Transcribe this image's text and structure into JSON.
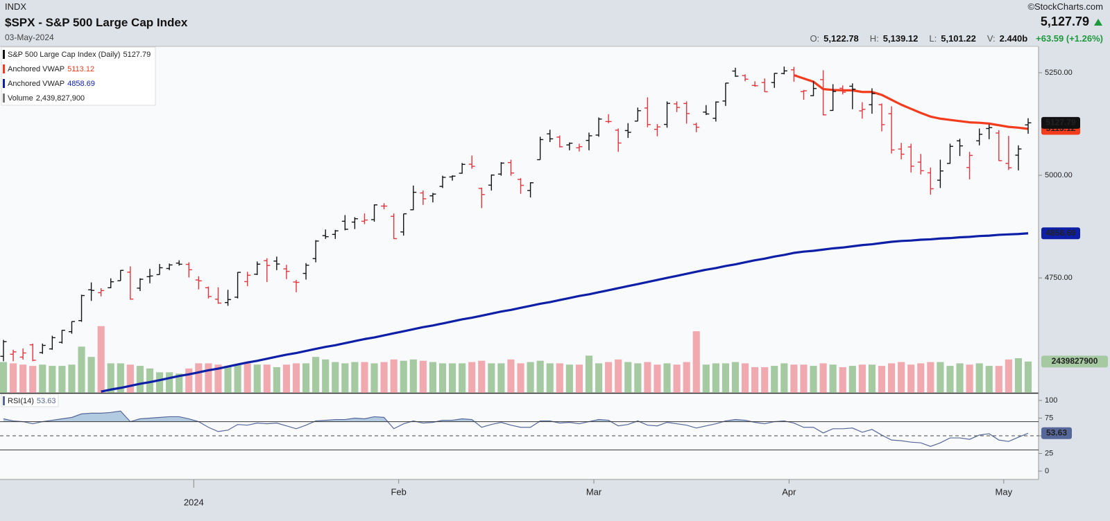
{
  "chart_data": {
    "type": "ohlc",
    "exchange": "INDX",
    "title": "$SPX - S&P 500 Large Cap Index",
    "date": "03-May-2024",
    "credit": "©StockCharts.com",
    "quote": [
      {
        "name": "O:",
        "label": "5,122.78"
      },
      {
        "name": "H:",
        "label": "5,139.12"
      },
      {
        "name": "L:",
        "label": "5,101.22"
      },
      {
        "name": "V:",
        "label": "2.440b"
      }
    ],
    "change": {
      "value": 63.59,
      "label": "+63.59 (+1.26%)"
    },
    "categories": [
      null,
      null,
      null,
      null,
      null,
      null,
      null,
      null,
      null,
      null,
      null,
      null,
      null,
      null,
      null,
      null,
      null,
      null,
      null,
      null,
      "2024",
      null,
      null,
      null,
      null,
      null,
      null,
      null,
      null,
      null,
      null,
      null,
      null,
      null,
      null,
      null,
      null,
      null,
      null,
      null,
      null,
      "Feb",
      null,
      null,
      null,
      null,
      null,
      null,
      null,
      null,
      null,
      null,
      null,
      null,
      null,
      null,
      null,
      null,
      null,
      null,
      null,
      "Mar",
      null,
      null,
      null,
      null,
      null,
      null,
      null,
      null,
      null,
      null,
      null,
      null,
      null,
      null,
      null,
      null,
      null,
      null,
      null,
      "Apr",
      null,
      null,
      null,
      null,
      null,
      null,
      null,
      null,
      null,
      null,
      null,
      null,
      null,
      null,
      null,
      null,
      null,
      null,
      null,
      null,
      null,
      "May",
      null,
      null
    ],
    "price": {
      "name": "S&P 500 Large Cap Index (Daily)",
      "last_label": "5,127.79",
      "up_color": "#111111",
      "down_color": "#e5333b",
      "open": [
        4559,
        4564,
        4557,
        4587,
        4568,
        4577,
        4593,
        4619,
        4646,
        4721,
        4714,
        4726,
        4743,
        4764,
        4725,
        4753,
        4758,
        4773,
        4786,
        4783,
        4745,
        4726,
        4698,
        4690,
        4703,
        4741,
        4759,
        4792,
        4791,
        4772,
        4740,
        4761,
        4797,
        4853,
        4856,
        4888,
        4886,
        4888,
        4892,
        4925,
        4900,
        4862,
        4916,
        4957,
        4950,
        4973,
        4996,
        5005,
        5027,
        4968,
        4976,
        5003,
        5031,
        4990,
        4963,
        5038,
        5101,
        5093,
        5074,
        5067,
        5085,
        5098,
        5131,
        5110,
        5109,
        5132,
        5164,
        5112,
        5124,
        5174,
        5175,
        5124,
        5154,
        5139,
        5181,
        5254,
        5243,
        5219,
        5226,
        5226,
        5248,
        5257,
        5204,
        5194,
        5233,
        5158,
        5212,
        5217,
        5157,
        5172,
        5172,
        5150,
        5064,
        5069,
        5032,
        5006,
        4988,
        5029,
        5084,
        5019,
        5084,
        5114,
        5103,
        5029,
        5049,
        5122.78
      ],
      "high": [
        4599,
        4575,
        4578,
        4590,
        4590,
        4609,
        4623,
        4644,
        4709,
        4739,
        4725,
        4749,
        4769,
        4778,
        4749,
        4772,
        4784,
        4785,
        4793,
        4788,
        4754,
        4729,
        4727,
        4721,
        4764,
        4765,
        4790,
        4798,
        4802,
        4782,
        4745,
        4786,
        4842,
        4868,
        4867,
        4903,
        4898,
        4907,
        4929,
        4932,
        4907,
        4906,
        4975,
        4963,
        4957,
        4999,
        5000,
        5030,
        5048,
        4970,
        5002,
        5032,
        5038,
        4993,
        4983,
        5094,
        5111,
        5097,
        5080,
        5077,
        5104,
        5141,
        5149,
        5114,
        5127,
        5165,
        5190,
        5125,
        5180,
        5180,
        5180,
        5128,
        5171,
        5180,
        5225,
        5262,
        5246,
        5229,
        5236,
        5249,
        5265,
        5264,
        5208,
        5229,
        5256,
        5222,
        5219,
        5224,
        5178,
        5212,
        5175,
        5168,
        5079,
        5077,
        5052,
        5019,
        5038,
        5077,
        5089,
        5057,
        5114,
        5124,
        5110,
        5096,
        5073,
        5139.12
      ],
      "low": [
        4547,
        4547,
        4551,
        4547,
        4565,
        4575,
        4590,
        4614,
        4643,
        4694,
        4705,
        4725,
        4743,
        4697,
        4718,
        4737,
        4758,
        4769,
        4780,
        4751,
        4722,
        4700,
        4687,
        4682,
        4700,
        4730,
        4757,
        4740,
        4769,
        4747,
        4715,
        4746,
        4788,
        4845,
        4845,
        4866,
        4869,
        4881,
        4887,
        4917,
        4845,
        4853,
        4915,
        4928,
        4934,
        4969,
        4987,
        5004,
        5016,
        4920,
        4963,
        4999,
        4999,
        4955,
        4946,
        5038,
        5081,
        5068,
        5061,
        5058,
        5061,
        5094,
        5127,
        5057,
        5091,
        5132,
        5117,
        5095,
        5116,
        5154,
        5126,
        5105,
        5147,
        5131,
        5169,
        5240,
        5229,
        5216,
        5203,
        5213,
        5246,
        5228,
        5184,
        5193,
        5146,
        5157,
        5197,
        5161,
        5138,
        5150,
        5107,
        5053,
        5039,
        5007,
        5002,
        4953,
        4969,
        5028,
        5047,
        4990,
        5073,
        5088,
        5035,
        5013,
        5012,
        5101.22
      ],
      "close": [
        4594.63,
        4569.78,
        4567.18,
        4549.34,
        4585.59,
        4604.37,
        4622.44,
        4643.7,
        4707.09,
        4719.55,
        4719.19,
        4740.56,
        4768.37,
        4698.35,
        4746.75,
        4754.63,
        4774.75,
        4781.58,
        4783.35,
        4769.83,
        4742.83,
        4704.81,
        4688.68,
        4697.24,
        4763.54,
        4756.5,
        4783.45,
        4780.24,
        4783.83,
        4765.98,
        4739.21,
        4780.94,
        4839.81,
        4850.43,
        4864.6,
        4868.55,
        4894.16,
        4890.97,
        4927.93,
        4924.97,
        4845.65,
        4906.19,
        4958.61,
        4942.81,
        4954.23,
        4995.06,
        4997.91,
        5026.61,
        5021.84,
        4953.17,
        5000.62,
        5029.73,
        5005.57,
        4975.51,
        4981.8,
        5087.03,
        5088.8,
        5069.53,
        5078.18,
        5069.76,
        5096.27,
        5137.08,
        5130.95,
        5078.65,
        5104.76,
        5157.36,
        5123.69,
        5117.94,
        5175.27,
        5165.31,
        5150.48,
        5117.09,
        5149.42,
        5178.51,
        5224.62,
        5241.53,
        5234.18,
        5218.19,
        5203.58,
        5248.49,
        5254.35,
        5243.77,
        5205.81,
        5211.49,
        5147.21,
        5204.34,
        5202.39,
        5209.91,
        5160.64,
        5199.06,
        5123.41,
        5061.82,
        5051.41,
        5022.21,
        5011.12,
        4967.23,
        5010.6,
        5070.55,
        5071.63,
        5048.42,
        5099.96,
        5116.17,
        5035.69,
        5018.39,
        5064.2,
        5127.79
      ]
    },
    "overlays": [
      {
        "name": "Anchored VWAP",
        "color": "#f23c1c",
        "values": [
          null,
          null,
          null,
          null,
          null,
          null,
          null,
          null,
          null,
          null,
          null,
          null,
          null,
          null,
          null,
          null,
          null,
          null,
          null,
          null,
          null,
          null,
          null,
          null,
          null,
          null,
          null,
          null,
          null,
          null,
          null,
          null,
          null,
          null,
          null,
          null,
          null,
          null,
          null,
          null,
          null,
          null,
          null,
          null,
          null,
          null,
          null,
          null,
          null,
          null,
          null,
          null,
          null,
          null,
          null,
          null,
          null,
          null,
          null,
          null,
          null,
          null,
          null,
          null,
          null,
          null,
          null,
          null,
          null,
          null,
          null,
          null,
          null,
          null,
          null,
          null,
          null,
          null,
          null,
          null,
          null,
          5244,
          5236,
          5228,
          5210,
          5208,
          5207,
          5207,
          5203,
          5203,
          5196,
          5184,
          5172,
          5162,
          5152,
          5143,
          5138,
          5135,
          5132,
          5129,
          5128,
          5126,
          5122,
          5118,
          5116,
          5113.12
        ]
      },
      {
        "name": "Anchored VWAP",
        "color": "#0d1fa6",
        "values": [
          null,
          null,
          null,
          null,
          null,
          null,
          null,
          null,
          null,
          null,
          4473,
          4478,
          4482,
          4487,
          4492,
          4496,
          4501,
          4506,
          4511,
          4515,
          4520,
          4525,
          4529,
          4534,
          4539,
          4544,
          4548,
          4553,
          4558,
          4563,
          4567,
          4572,
          4577,
          4582,
          4586,
          4591,
          4596,
          4601,
          4605,
          4610,
          4615,
          4620,
          4625,
          4630,
          4634,
          4639,
          4644,
          4649,
          4653,
          4658,
          4663,
          4668,
          4672,
          4677,
          4682,
          4687,
          4691,
          4696,
          4701,
          4706,
          4710,
          4715,
          4720,
          4725,
          4730,
          4735,
          4740,
          4745,
          4750,
          4755,
          4760,
          4765,
          4770,
          4774,
          4779,
          4783,
          4788,
          4793,
          4797,
          4802,
          4806,
          4811,
          4814,
          4816,
          4819,
          4822,
          4824,
          4827,
          4830,
          4832,
          4835,
          4838,
          4840,
          4841,
          4843,
          4844,
          4846,
          4847,
          4849,
          4850,
          4852,
          4853,
          4855,
          4856,
          4857,
          4858.69
        ]
      }
    ],
    "volume": {
      "name": "Volume",
      "last_label": "2,439,827,900",
      "up_color": "#a5c9a1",
      "down_color": "#f0a9af",
      "ylim": [
        0,
        27000000000
      ],
      "values": [
        2400000000.0,
        2300000000.0,
        2200000000.0,
        2100000000.0,
        2200000000.0,
        2100000000.0,
        2100000000.0,
        2200000000.0,
        3600000000.0,
        2800000000.0,
        5200000000.0,
        2300000000.0,
        2300000000.0,
        2200000000.0,
        2100000000.0,
        1900000000.0,
        1600000000.0,
        1600000000.0,
        1500000000.0,
        1900000000.0,
        2300000000.0,
        2300000000.0,
        2200000000.0,
        2100000000.0,
        2200000000.0,
        2300000000.0,
        2200000000.0,
        2200000000.0,
        2000000000.0,
        2200000000.0,
        2300000000.0,
        2300000000.0,
        2800000000.0,
        2600000000.0,
        2400000000.0,
        2300000000.0,
        2400000000.0,
        2400000000.0,
        2300000000.0,
        2400000000.0,
        2600000000.0,
        2500000000.0,
        2600000000.0,
        2500000000.0,
        2400000000.0,
        2300000000.0,
        2300000000.0,
        2300000000.0,
        2400000000.0,
        2500000000.0,
        2300000000.0,
        2300000000.0,
        2600000000.0,
        2300000000.0,
        2400000000.0,
        2500000000.0,
        2300000000.0,
        2300000000.0,
        2200000000.0,
        2200000000.0,
        2900000000.0,
        2300000000.0,
        2400000000.0,
        2600000000.0,
        2400000000.0,
        2300000000.0,
        2400000000.0,
        2200000000.0,
        2300000000.0,
        2200000000.0,
        2400000000.0,
        4800000000.0,
        2200000000.0,
        2300000000.0,
        2300000000.0,
        2400000000.0,
        2300000000.0,
        2000000000.0,
        2000000000.0,
        2100000000.0,
        2300000000.0,
        2200000000.0,
        2200000000.0,
        2100000000.0,
        2300000000.0,
        2200000000.0,
        2000000000.0,
        2100000000.0,
        2200000000.0,
        2200000000.0,
        2100000000.0,
        2300000000.0,
        2400000000.0,
        2200000000.0,
        2300000000.0,
        2400000000.0,
        2400000000.0,
        2100000000.0,
        2300000000.0,
        2200000000.0,
        2300000000.0,
        2100000000.0,
        2100000000.0,
        2600000000.0,
        2700000000.0,
        2439827900
      ]
    },
    "ylim": [
      4470,
      5314
    ],
    "yticks": [
      {
        "value": 4750,
        "label": "4750.00"
      },
      {
        "value": 5000,
        "label": "5000.00"
      },
      {
        "value": 5250,
        "label": "5250.00"
      }
    ],
    "grid": false,
    "rsi": {
      "name": "RSI(14)",
      "color": "#56679a",
      "fill": "#b3cbe0",
      "ylim": [
        0,
        100
      ],
      "yticks": [
        0,
        25,
        50,
        75,
        100
      ],
      "levels": [
        30,
        70
      ],
      "midline": 50,
      "values": [
        74,
        71,
        70,
        67,
        70,
        72,
        74,
        76,
        81,
        82,
        82,
        83,
        85,
        70,
        74,
        75,
        76,
        77,
        77,
        74,
        70,
        62,
        56,
        58,
        66,
        65,
        68,
        67,
        68,
        64,
        60,
        65,
        71,
        72,
        73,
        73,
        75,
        74,
        77,
        76,
        60,
        67,
        71,
        68,
        69,
        72,
        72,
        74,
        73,
        62,
        66,
        69,
        65,
        62,
        62,
        71,
        71,
        68,
        69,
        67,
        70,
        73,
        72,
        64,
        66,
        71,
        65,
        64,
        69,
        67,
        65,
        61,
        64,
        67,
        71,
        73,
        72,
        69,
        67,
        70,
        71,
        68,
        62,
        62,
        54,
        60,
        60,
        61,
        55,
        59,
        51,
        44,
        43,
        41,
        40,
        35,
        40,
        47,
        47,
        45,
        51,
        53,
        44,
        42,
        48,
        53.63
      ]
    }
  }
}
